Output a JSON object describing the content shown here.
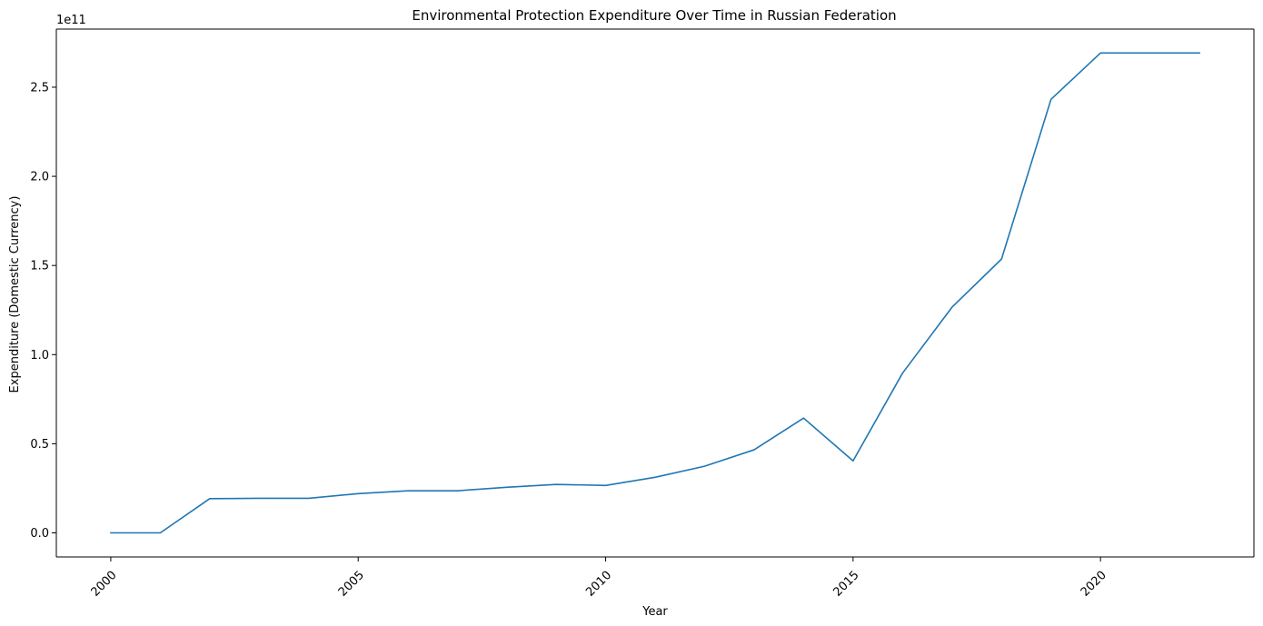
{
  "chart_data": {
    "type": "line",
    "title": "Environmental Protection Expenditure Over Time in Russian Federation",
    "xlabel": "Year",
    "ylabel": "Expenditure (Domestic Currency)",
    "offset_label": "1e11",
    "x": [
      2000,
      2001,
      2002,
      2003,
      2004,
      2005,
      2006,
      2007,
      2008,
      2009,
      2010,
      2011,
      2012,
      2013,
      2014,
      2015,
      2016,
      2017,
      2018,
      2019,
      2020,
      2021,
      2022
    ],
    "series": [
      {
        "name": "",
        "color": "#1f77b4",
        "values": [
          0.0,
          0.0,
          19200000000.0,
          19400000000.0,
          19400000000.0,
          22000000000.0,
          23600000000.0,
          23600000000.0,
          25600000000.0,
          27200000000.0,
          26600000000.0,
          31200000000.0,
          37400000000.0,
          46600000000.0,
          64400000000.0,
          40400000000.0,
          89600000000.0,
          126600000000.0,
          153600000000.0,
          243200000000.0,
          269200000000.0,
          269200000000.0,
          269200000000.0
        ]
      }
    ],
    "xlim": [
      1998.9,
      2023.1
    ],
    "ylim": [
      -13500000000.0,
      282600000000.0
    ],
    "x_ticks": [
      2000,
      2005,
      2010,
      2015,
      2020
    ],
    "x_tick_labels": [
      "2000",
      "2005",
      "2010",
      "2015",
      "2020"
    ],
    "y_ticks": [
      0,
      50000000000.0,
      100000000000.0,
      150000000000.0,
      200000000000.0,
      250000000000.0
    ],
    "y_tick_labels": [
      "0.0",
      "0.5",
      "1.0",
      "1.5",
      "2.0",
      "2.5"
    ],
    "x_tick_rotation_deg": 45,
    "grid": false,
    "legend": "none"
  }
}
